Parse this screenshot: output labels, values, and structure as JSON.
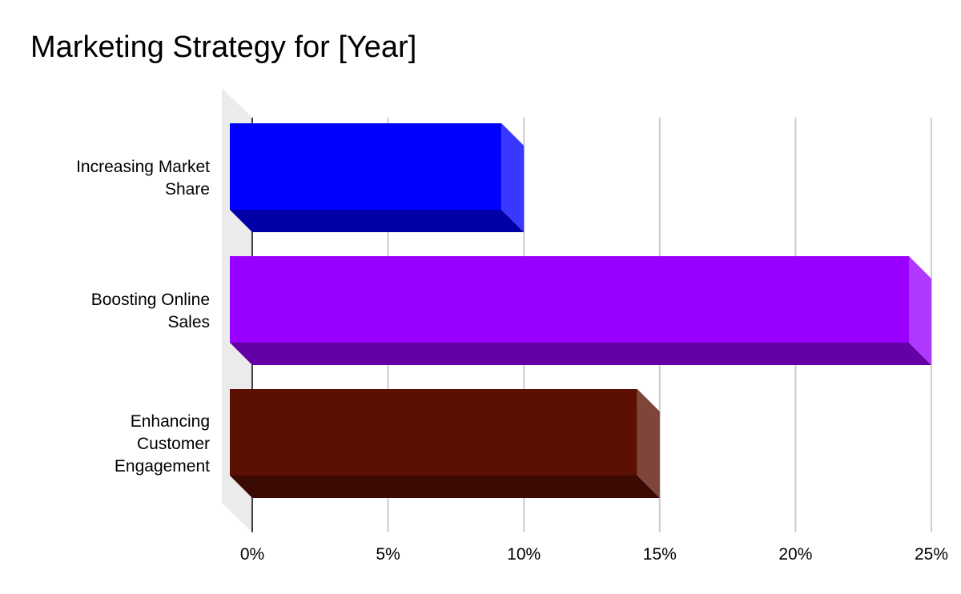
{
  "chart_data": {
    "type": "bar",
    "orientation": "horizontal",
    "style": "3d",
    "title": "Marketing Strategy for [Year]",
    "xlabel": "",
    "ylabel": "",
    "xlim": [
      0,
      25
    ],
    "grid": true,
    "legend": "none",
    "categories": [
      [
        "Increasing Market",
        "Share"
      ],
      [
        "Boosting Online",
        "Sales"
      ],
      [
        "Enhancing",
        "Customer",
        "Engagement"
      ]
    ],
    "values": [
      10,
      25,
      15
    ],
    "colors": [
      "#0000ff",
      "#9900ff",
      "#5b1003"
    ],
    "x_ticks": [
      0,
      5,
      10,
      15,
      20,
      25
    ],
    "x_tick_labels": [
      "0%",
      "5%",
      "10%",
      "15%",
      "20%",
      "25%"
    ]
  }
}
